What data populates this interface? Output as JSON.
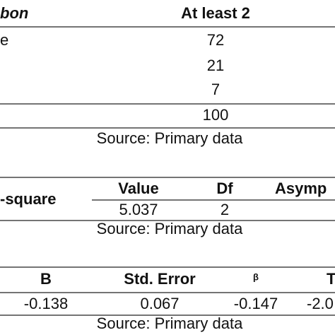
{
  "tables": [
    {
      "header": {
        "label": "bon",
        "column": "At least 2"
      },
      "rows": [
        {
          "label": "e",
          "value": "72"
        },
        {
          "value": "21"
        },
        {
          "value": "7"
        },
        {
          "value": "100"
        }
      ],
      "source": "Source: Primary data"
    },
    {
      "header": {
        "label": "-square",
        "columns": [
          "Value",
          "Df",
          "Asymp"
        ]
      },
      "rows": [
        [
          "5.037",
          "2"
        ]
      ],
      "source": "Source: Primary data"
    },
    {
      "header": {
        "columns": [
          "B",
          "Std. Error",
          "β",
          "T"
        ]
      },
      "rows": [
        [
          "-0.138",
          "0.067",
          "-0.147",
          "-2.0"
        ]
      ],
      "source": "Source: Primary data"
    }
  ]
}
